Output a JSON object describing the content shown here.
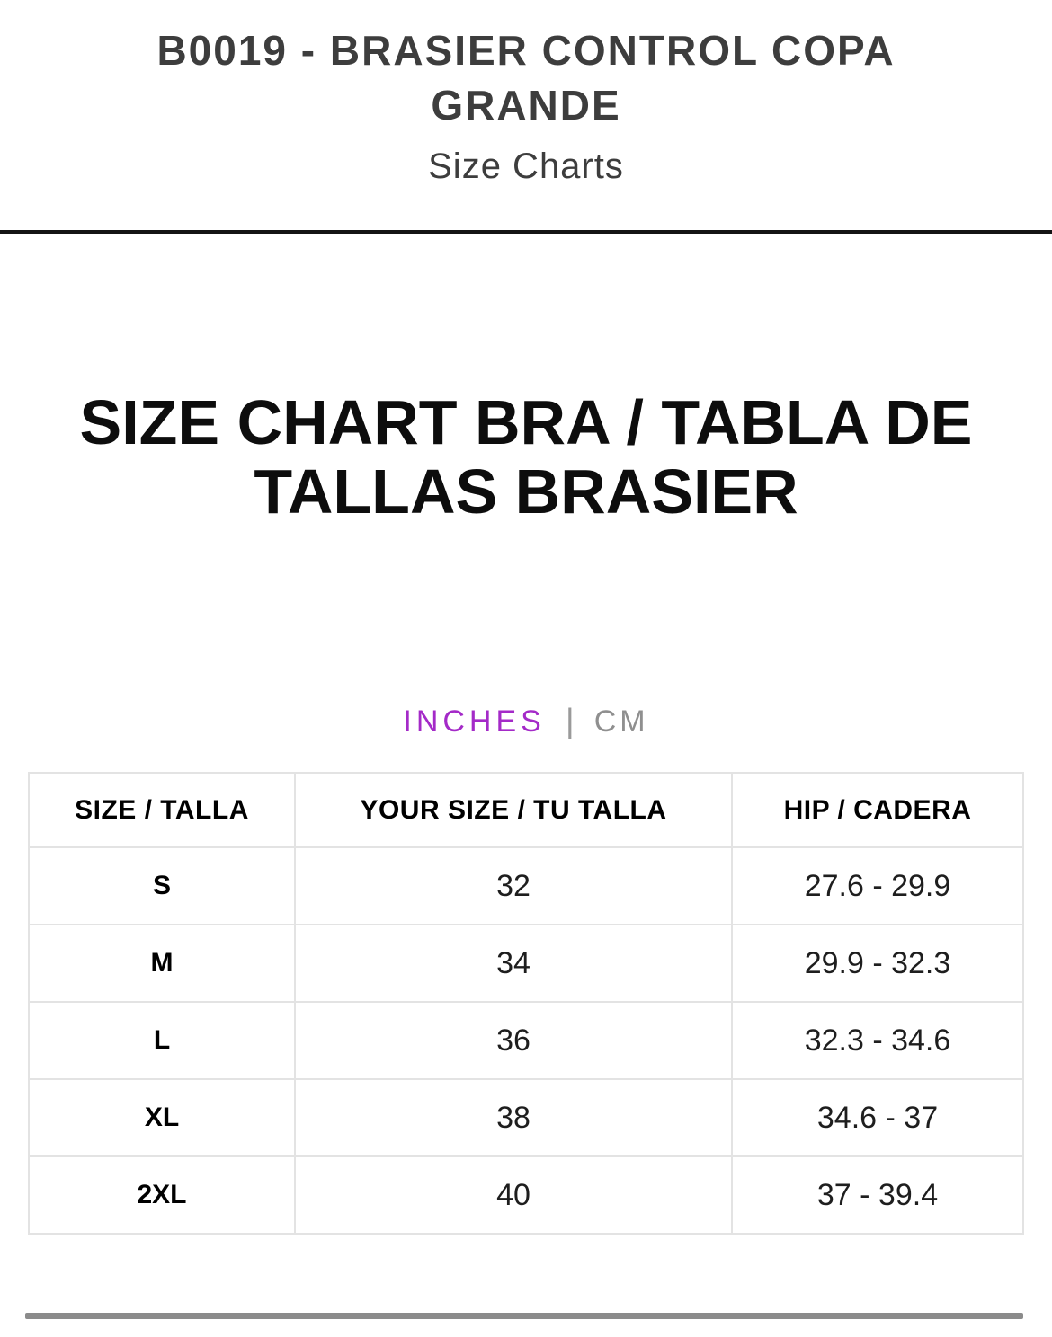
{
  "header": {
    "title_line1": "B0019 - BRASIER CONTROL COPA",
    "title_line2": "GRANDE",
    "subtitle": "Size Charts"
  },
  "section": {
    "heading_line1": "SIZE CHART BRA / TABLA DE",
    "heading_line2": "TALLAS BRASIER",
    "units": {
      "inches_label": "INCHES",
      "separator": "|",
      "cm_label": "CM",
      "active_unit": "INCHES",
      "active_color": "#a42ac8",
      "inactive_color": "#8f8f8f"
    },
    "table": {
      "headers": [
        "SIZE / TALLA",
        "YOUR SIZE / TU TALLA",
        "HIP / CADERA"
      ],
      "rows": [
        [
          "S",
          "32",
          "27.6 - 29.9"
        ],
        [
          "M",
          "34",
          "29.9 - 32.3"
        ],
        [
          "L",
          "36",
          "32.3 - 34.6"
        ],
        [
          "XL",
          "38",
          "34.6 - 37"
        ],
        [
          "2XL",
          "40",
          "37 - 39.4"
        ]
      ]
    }
  },
  "colors": {
    "title_text": "#3d3d3d",
    "heading_text": "#0d0d0d",
    "divider": "#141414",
    "table_border": "#e3e3e3",
    "scrollbar": "#8b8b8b"
  }
}
